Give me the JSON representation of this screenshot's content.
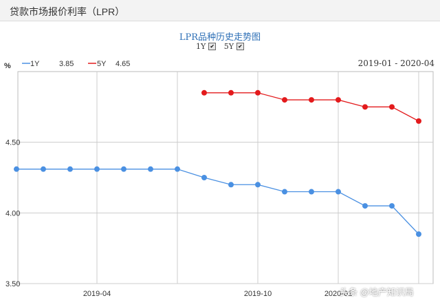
{
  "header": {
    "title": "贷款市场报价利率（LPR）"
  },
  "chart_data": {
    "type": "line",
    "title": "LPR品种历史走势图",
    "ylabel": "%",
    "date_range": "2019-01 - 2020-04",
    "ylim": [
      3.5,
      5.0
    ],
    "y_ticks": [
      "4.50",
      "4.00",
      "3.50"
    ],
    "x_tick_labels": [
      "2019-04",
      "2019-10",
      "2020-01"
    ],
    "x": [
      "2019-01",
      "2019-02",
      "2019-03",
      "2019-04",
      "2019-05",
      "2019-06",
      "2019-07",
      "2019-08",
      "2019-09",
      "2019-10",
      "2019-11",
      "2019-12",
      "2020-01",
      "2020-02",
      "2020-03",
      "2020-04"
    ],
    "series": [
      {
        "name": "1Y",
        "latest": "3.85",
        "color": "#4a90e2",
        "checkbox": "1Y",
        "values": [
          4.31,
          4.31,
          4.31,
          4.31,
          4.31,
          4.31,
          4.31,
          4.25,
          4.2,
          4.2,
          4.15,
          4.15,
          4.15,
          4.05,
          4.05,
          3.85
        ]
      },
      {
        "name": "5Y",
        "latest": "4.65",
        "color": "#e31a1c",
        "checkbox": "5Y",
        "values": [
          null,
          null,
          null,
          null,
          null,
          null,
          null,
          4.85,
          4.85,
          4.85,
          4.8,
          4.8,
          4.8,
          4.75,
          4.75,
          4.65
        ]
      }
    ],
    "grid": true,
    "legend": "top-left"
  },
  "watermark": {
    "text": "头条 @地产知识局"
  }
}
